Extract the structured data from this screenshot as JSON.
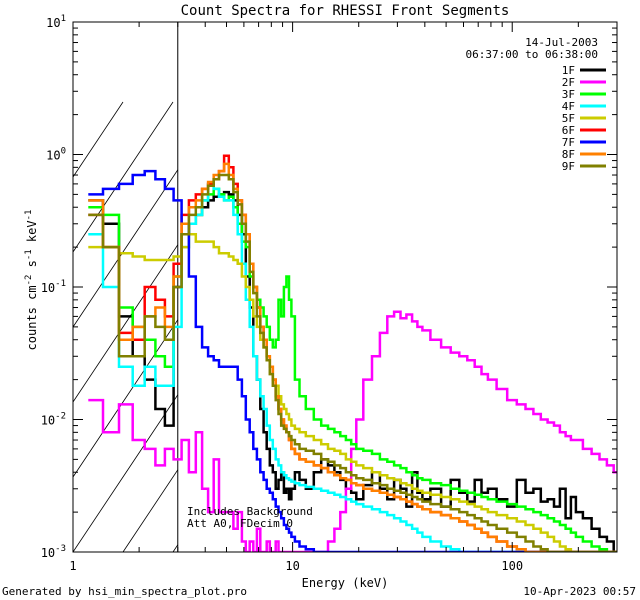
{
  "chart_data": {
    "type": "line",
    "title": "Count Spectra for RHESSI Front Segments",
    "xlabel": "Energy (keV)",
    "ylabel": "counts cm^-2 s^-1 keV^-1",
    "ylabel_parts": {
      "base": "counts cm",
      "exp1": "-2",
      "mid": " s",
      "exp2": "-1",
      "mid2": " keV",
      "exp3": "-1"
    },
    "xscale": "log",
    "yscale": "log",
    "xlim": [
      1,
      300
    ],
    "ylim": [
      0.001,
      10
    ],
    "x_ticks": [
      {
        "value": 1,
        "label": "1"
      },
      {
        "value": 10,
        "label": "10"
      },
      {
        "value": 100,
        "label": "100"
      }
    ],
    "y_ticks": [
      {
        "value": 0.001,
        "base": "10",
        "exp": "-3"
      },
      {
        "value": 0.01,
        "base": "10",
        "exp": "-2"
      },
      {
        "value": 0.1,
        "base": "10",
        "exp": "-1"
      },
      {
        "value": 1,
        "base": "10",
        "exp": "0"
      },
      {
        "value": 10,
        "base": "10",
        "exp": "1"
      }
    ],
    "date": "14-Jul-2003",
    "time_range": "06:37:00 to 06:38:00",
    "shaded_region_below_keV": 3,
    "annotations": [
      "Includes Background",
      "Att A0, FDecim 0"
    ],
    "footer_left": "Generated by hsi_min_spectra_plot.pro",
    "footer_right": "10-Apr-2023 00:57",
    "energies": [
      1.25,
      1.5,
      1.75,
      2.0,
      2.25,
      2.5,
      2.75,
      3.0,
      3.25,
      3.5,
      3.75,
      4.0,
      4.25,
      4.5,
      4.75,
      5.0,
      5.25,
      5.5,
      5.75,
      6.0,
      6.25,
      6.5,
      6.75,
      7.0,
      7.25,
      7.5,
      7.75,
      8.0,
      8.25,
      8.5,
      8.75,
      9.0,
      9.25,
      9.5,
      9.75,
      10.0,
      10.5,
      11,
      12,
      13,
      14,
      15,
      16,
      17,
      18,
      19,
      20,
      22,
      24,
      26,
      28,
      30,
      32,
      34,
      36,
      38,
      40,
      45,
      50,
      55,
      60,
      65,
      70,
      75,
      80,
      90,
      100,
      110,
      120,
      130,
      140,
      150,
      160,
      170,
      180,
      190,
      200,
      220,
      240,
      260,
      280,
      300
    ],
    "series": [
      {
        "name": "1F",
        "color": "#000000",
        "values": [
          0.45,
          0.3,
          0.06,
          0.03,
          0.02,
          0.012,
          0.009,
          0.1,
          0.25,
          0.3,
          0.35,
          0.4,
          0.45,
          0.48,
          0.5,
          0.52,
          0.5,
          0.45,
          0.35,
          0.25,
          0.12,
          0.07,
          0.03,
          0.02,
          0.012,
          0.008,
          0.006,
          0.0045,
          0.004,
          0.003,
          0.0035,
          0.004,
          0.0028,
          0.003,
          0.0025,
          0.003,
          0.004,
          0.0035,
          0.003,
          0.004,
          0.005,
          0.0045,
          0.004,
          0.0035,
          0.003,
          0.0028,
          0.0025,
          0.0032,
          0.004,
          0.003,
          0.0025,
          0.0035,
          0.003,
          0.0022,
          0.004,
          0.0028,
          0.0025,
          0.003,
          0.0022,
          0.0035,
          0.0028,
          0.0024,
          0.0035,
          0.0028,
          0.003,
          0.0025,
          0.0022,
          0.0035,
          0.0028,
          0.003,
          0.0024,
          0.0025,
          0.0022,
          0.003,
          0.0018,
          0.0026,
          0.002,
          0.0018,
          0.0015,
          0.0013,
          0.0012,
          0.001
        ]
      },
      {
        "name": "2F",
        "color": "#ff00ff",
        "values": [
          0.014,
          0.008,
          0.013,
          0.007,
          0.006,
          0.0045,
          0.006,
          0.005,
          0.007,
          0.004,
          0.008,
          0.003,
          0.002,
          0.005,
          0.002,
          0.002,
          0.002,
          0.0015,
          0.002,
          0.0012,
          0.001,
          0.0012,
          0.001,
          0.0015,
          0.001,
          0.001,
          0.0012,
          0.001,
          0.001,
          0.0012,
          0.001,
          0.001,
          0.001,
          0.001,
          0.001,
          0.001,
          0.001,
          0.001,
          0.001,
          0.001,
          0.001,
          0.0012,
          0.0015,
          0.002,
          0.003,
          0.006,
          0.01,
          0.02,
          0.03,
          0.045,
          0.06,
          0.065,
          0.058,
          0.062,
          0.055,
          0.05,
          0.047,
          0.04,
          0.035,
          0.032,
          0.03,
          0.028,
          0.025,
          0.022,
          0.02,
          0.017,
          0.014,
          0.013,
          0.012,
          0.011,
          0.01,
          0.0095,
          0.009,
          0.008,
          0.0075,
          0.007,
          0.007,
          0.006,
          0.0055,
          0.005,
          0.0045,
          0.004
        ]
      },
      {
        "name": "3F",
        "color": "#00ff00",
        "values": [
          0.4,
          0.35,
          0.07,
          0.05,
          0.04,
          0.03,
          0.025,
          0.12,
          0.25,
          0.3,
          0.35,
          0.45,
          0.5,
          0.55,
          0.5,
          0.45,
          0.48,
          0.4,
          0.3,
          0.22,
          0.2,
          0.12,
          0.1,
          0.08,
          0.07,
          0.06,
          0.05,
          0.04,
          0.035,
          0.04,
          0.08,
          0.06,
          0.1,
          0.12,
          0.08,
          0.06,
          0.02,
          0.015,
          0.012,
          0.01,
          0.009,
          0.0085,
          0.008,
          0.0075,
          0.007,
          0.0065,
          0.006,
          0.0058,
          0.0055,
          0.005,
          0.0048,
          0.0045,
          0.0043,
          0.004,
          0.0038,
          0.0036,
          0.0035,
          0.0033,
          0.0032,
          0.003,
          0.0029,
          0.0028,
          0.0027,
          0.0026,
          0.0025,
          0.0024,
          0.0023,
          0.0022,
          0.0021,
          0.002,
          0.0019,
          0.0018,
          0.0017,
          0.0016,
          0.0015,
          0.0014,
          0.0013,
          0.0012,
          0.0011,
          0.00105,
          0.001,
          0.001
        ]
      },
      {
        "name": "4F",
        "color": "#00ffff",
        "values": [
          0.25,
          0.1,
          0.025,
          0.018,
          0.025,
          0.018,
          0.018,
          0.05,
          0.2,
          0.3,
          0.35,
          0.45,
          0.6,
          0.55,
          0.48,
          0.45,
          0.45,
          0.35,
          0.25,
          0.15,
          0.08,
          0.05,
          0.03,
          0.02,
          0.015,
          0.012,
          0.009,
          0.007,
          0.006,
          0.005,
          0.0045,
          0.004,
          0.0038,
          0.0036,
          0.0035,
          0.0034,
          0.0033,
          0.0032,
          0.0031,
          0.003,
          0.0029,
          0.0028,
          0.0027,
          0.0026,
          0.0025,
          0.0024,
          0.0023,
          0.0022,
          0.0021,
          0.002,
          0.0019,
          0.0018,
          0.0017,
          0.0016,
          0.0015,
          0.0014,
          0.0013,
          0.0012,
          0.0011,
          0.00105,
          0.001,
          0.001,
          0.001,
          0.001,
          0.001,
          0.001,
          0.001,
          0.001,
          0.001,
          0.001,
          0.001,
          0.001,
          0.001,
          0.001,
          0.001,
          0.001,
          0.001,
          0.001,
          0.001,
          0.001,
          0.001,
          0.001
        ]
      },
      {
        "name": "5F",
        "color": "#cccc00",
        "values": [
          0.2,
          0.2,
          0.18,
          0.17,
          0.16,
          0.16,
          0.16,
          0.17,
          0.2,
          0.25,
          0.22,
          0.22,
          0.22,
          0.2,
          0.18,
          0.18,
          0.17,
          0.16,
          0.15,
          0.12,
          0.1,
          0.08,
          0.06,
          0.05,
          0.04,
          0.035,
          0.03,
          0.025,
          0.02,
          0.018,
          0.015,
          0.013,
          0.012,
          0.011,
          0.01,
          0.009,
          0.0085,
          0.008,
          0.0075,
          0.007,
          0.0065,
          0.006,
          0.0058,
          0.0055,
          0.005,
          0.0048,
          0.0045,
          0.0043,
          0.004,
          0.0038,
          0.0036,
          0.0035,
          0.0033,
          0.0032,
          0.003,
          0.0029,
          0.0028,
          0.0027,
          0.0026,
          0.0025,
          0.0024,
          0.0023,
          0.0022,
          0.0021,
          0.002,
          0.0019,
          0.0018,
          0.0017,
          0.0016,
          0.0015,
          0.0014,
          0.0013,
          0.0012,
          0.0011,
          0.00105,
          0.001,
          0.001,
          0.001,
          0.001,
          0.001,
          0.001,
          0.001
        ]
      },
      {
        "name": "6F",
        "color": "#ff0000",
        "values": [
          0.35,
          0.2,
          0.045,
          0.04,
          0.1,
          0.08,
          0.06,
          0.15,
          0.35,
          0.45,
          0.5,
          0.55,
          0.6,
          0.65,
          0.75,
          0.98,
          0.8,
          0.6,
          0.45,
          0.35,
          0.25,
          0.15,
          0.1,
          0.07,
          0.05,
          0.04,
          0.03,
          0.025,
          0.02,
          0.015,
          0.012,
          0.01,
          0.009,
          0.008,
          0.007,
          0.006,
          0.0055,
          0.005,
          0.0048,
          0.0045,
          0.0043,
          0.004,
          0.0038,
          0.0036,
          0.0035,
          0.0033,
          0.0032,
          0.003,
          0.0029,
          0.0028,
          0.0027,
          0.0026,
          0.0025,
          0.0024,
          0.0023,
          0.0022,
          0.0021,
          0.002,
          0.0019,
          0.0018,
          0.0017,
          0.0016,
          0.0015,
          0.0014,
          0.0013,
          0.0012,
          0.0011,
          0.00105,
          0.001,
          0.001,
          0.001,
          0.001,
          0.001,
          0.001,
          0.001,
          0.001,
          0.001,
          0.001,
          0.001,
          0.001,
          0.001,
          0.001
        ]
      },
      {
        "name": "7F",
        "color": "#0000ff",
        "values": [
          0.5,
          0.55,
          0.6,
          0.7,
          0.75,
          0.65,
          0.55,
          0.45,
          0.3,
          0.12,
          0.05,
          0.035,
          0.03,
          0.028,
          0.025,
          0.025,
          0.025,
          0.025,
          0.02,
          0.015,
          0.01,
          0.008,
          0.006,
          0.005,
          0.004,
          0.0035,
          0.003,
          0.0028,
          0.0025,
          0.0022,
          0.002,
          0.0018,
          0.0016,
          0.0015,
          0.0014,
          0.0013,
          0.0012,
          0.0011,
          0.00105,
          0.001,
          0.001,
          0.001,
          0.001,
          0.001,
          0.001,
          0.001,
          0.001,
          0.001,
          0.001,
          0.001,
          0.001,
          0.001,
          0.001,
          0.001,
          0.001,
          0.001,
          0.001,
          0.001,
          0.001,
          0.001,
          0.001,
          0.001,
          0.001,
          0.001,
          0.001,
          0.001,
          0.001,
          0.001,
          0.001,
          0.001,
          0.001,
          0.001,
          0.001,
          0.001,
          0.001,
          0.001,
          0.001,
          0.001,
          0.001,
          0.001,
          0.001,
          0.001
        ]
      },
      {
        "name": "8F",
        "color": "#ff8000",
        "values": [
          0.45,
          0.2,
          0.04,
          0.05,
          0.06,
          0.07,
          0.05,
          0.12,
          0.3,
          0.4,
          0.45,
          0.55,
          0.62,
          0.7,
          0.75,
          0.85,
          0.7,
          0.55,
          0.45,
          0.35,
          0.25,
          0.15,
          0.1,
          0.07,
          0.05,
          0.04,
          0.03,
          0.025,
          0.02,
          0.015,
          0.012,
          0.01,
          0.009,
          0.008,
          0.007,
          0.006,
          0.0055,
          0.005,
          0.0048,
          0.0045,
          0.0043,
          0.004,
          0.0038,
          0.0036,
          0.0035,
          0.0033,
          0.0032,
          0.003,
          0.0029,
          0.0028,
          0.0027,
          0.0026,
          0.0025,
          0.0024,
          0.0023,
          0.0022,
          0.0021,
          0.002,
          0.0019,
          0.0018,
          0.0017,
          0.0016,
          0.0015,
          0.0014,
          0.0013,
          0.0012,
          0.0011,
          0.00105,
          0.001,
          0.001,
          0.001,
          0.001,
          0.001,
          0.001,
          0.001,
          0.001,
          0.001,
          0.001,
          0.001,
          0.001,
          0.001,
          0.001
        ]
      },
      {
        "name": "9F",
        "color": "#808000",
        "values": [
          0.35,
          0.2,
          0.03,
          0.03,
          0.06,
          0.05,
          0.04,
          0.1,
          0.25,
          0.35,
          0.4,
          0.5,
          0.58,
          0.65,
          0.7,
          0.7,
          0.65,
          0.52,
          0.42,
          0.3,
          0.22,
          0.13,
          0.09,
          0.06,
          0.045,
          0.035,
          0.028,
          0.022,
          0.018,
          0.014,
          0.011,
          0.009,
          0.0085,
          0.008,
          0.0075,
          0.007,
          0.0065,
          0.006,
          0.0058,
          0.0055,
          0.005,
          0.0048,
          0.0045,
          0.0043,
          0.004,
          0.0038,
          0.0036,
          0.0035,
          0.0033,
          0.0032,
          0.003,
          0.0029,
          0.0028,
          0.0027,
          0.0026,
          0.0025,
          0.0024,
          0.0023,
          0.0022,
          0.0021,
          0.002,
          0.0019,
          0.0018,
          0.0017,
          0.0016,
          0.0015,
          0.0014,
          0.0013,
          0.0012,
          0.0011,
          0.00105,
          0.001,
          0.001,
          0.001,
          0.001,
          0.001,
          0.001,
          0.001,
          0.001,
          0.001,
          0.001,
          0.001
        ]
      }
    ]
  }
}
